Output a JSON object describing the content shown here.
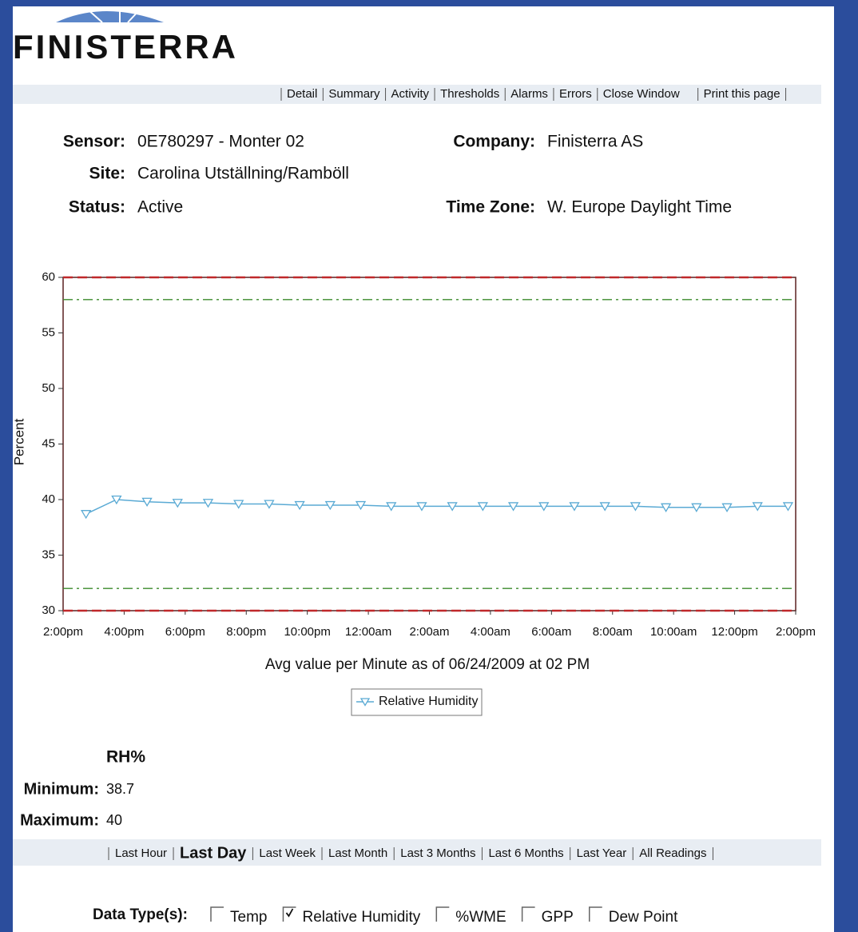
{
  "logo": "FINISTERRA",
  "nav": [
    "Detail",
    "Summary",
    "Activity",
    "Thresholds",
    "Alarms",
    "Errors",
    "Close Window",
    "Print this page"
  ],
  "info": [
    {
      "label": "Sensor:",
      "value": "0E780297 - Monter 02"
    },
    {
      "label": "Site:",
      "value": "Carolina Utställning/Ramböll"
    },
    {
      "label": "Status:",
      "value": "Active"
    },
    {
      "label": "Company:",
      "value": "Finisterra AS"
    },
    {
      "label": "Time Zone:",
      "value": "W. Europe Daylight Time"
    }
  ],
  "chart_data": {
    "type": "line",
    "ylabel": "Percent",
    "xlabel": "Avg value per Minute as of 06/24/2009 at 02 PM",
    "x": [
      0.75,
      1.75,
      2.75,
      3.75,
      4.75,
      5.75,
      6.75,
      7.75,
      8.75,
      9.75,
      10.75,
      11.75,
      12.75,
      13.75,
      14.75,
      15.75,
      16.75,
      17.75,
      18.75,
      19.75,
      20.75,
      21.75,
      22.75,
      23.75
    ],
    "series": [
      {
        "name": "Relative Humidity",
        "color": "#5aaad4",
        "values": [
          38.7,
          40.0,
          39.8,
          39.7,
          39.7,
          39.6,
          39.6,
          39.5,
          39.5,
          39.5,
          39.4,
          39.4,
          39.4,
          39.4,
          39.4,
          39.4,
          39.4,
          39.4,
          39.4,
          39.3,
          39.3,
          39.3,
          39.4,
          39.4
        ]
      }
    ],
    "thresholds": [
      {
        "value": 60,
        "color": "#c0282a",
        "style": "dashed"
      },
      {
        "value": 58,
        "color": "#3a8a2a",
        "style": "dash-dot"
      },
      {
        "value": 32,
        "color": "#3a8a2a",
        "style": "dash-dot"
      },
      {
        "value": 30,
        "color": "#c0282a",
        "style": "dashed"
      }
    ],
    "xlim": [
      0,
      24
    ],
    "xticks": [
      {
        "value": 0,
        "label": "2:00pm"
      },
      {
        "value": 2,
        "label": "4:00pm"
      },
      {
        "value": 4,
        "label": "6:00pm"
      },
      {
        "value": 6,
        "label": "8:00pm"
      },
      {
        "value": 8,
        "label": "10:00pm"
      },
      {
        "value": 10,
        "label": "12:00am"
      },
      {
        "value": 12,
        "label": "2:00am"
      },
      {
        "value": 14,
        "label": "4:00am"
      },
      {
        "value": 16,
        "label": "6:00am"
      },
      {
        "value": 18,
        "label": "8:00am"
      },
      {
        "value": 20,
        "label": "10:00am"
      },
      {
        "value": 22,
        "label": "12:00pm"
      },
      {
        "value": 24,
        "label": "2:00pm"
      }
    ],
    "ylim": [
      30,
      60
    ],
    "yticks": [
      30,
      35,
      40,
      45,
      50,
      55,
      60
    ]
  },
  "stats": {
    "header": "RH%",
    "rows": [
      {
        "label": "Minimum:",
        "value": 38.7
      },
      {
        "label": "Maximum:",
        "value": 40
      }
    ]
  },
  "ranges": {
    "items": [
      "Last Hour",
      "Last Day",
      "Last Week",
      "Last Month",
      "Last 3 Months",
      "Last 6 Months",
      "Last Year",
      "All Readings"
    ],
    "selected": 1
  },
  "data_types": {
    "label": "Data Type(s):",
    "options": [
      {
        "name": "Temp",
        "checked": false
      },
      {
        "name": "Relative Humidity",
        "checked": true
      },
      {
        "name": "%WME",
        "checked": false
      },
      {
        "name": "GPP",
        "checked": false
      },
      {
        "name": "Dew Point",
        "checked": false
      }
    ]
  }
}
